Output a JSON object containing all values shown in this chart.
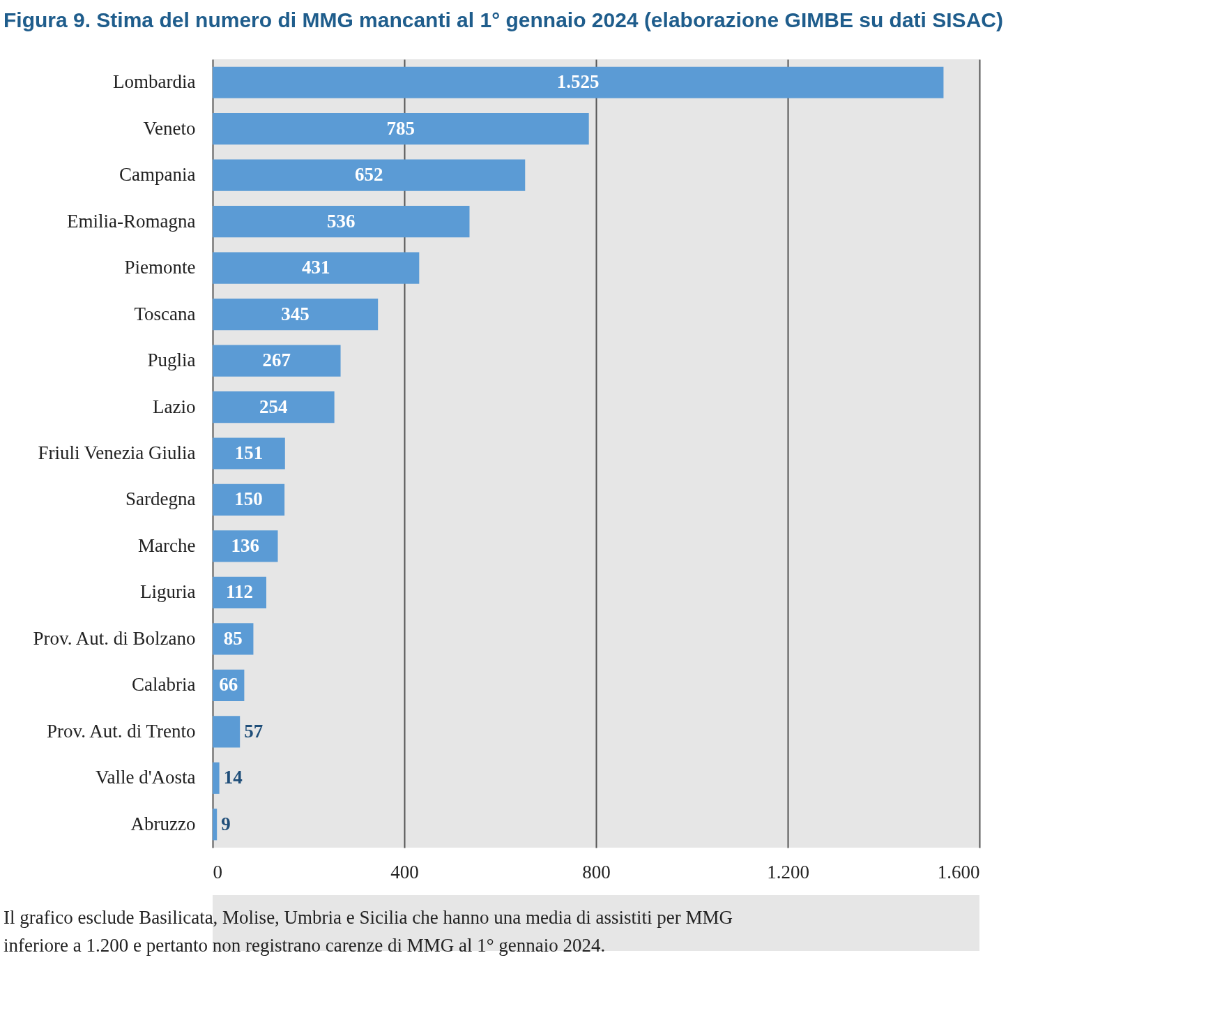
{
  "chart_data": {
    "type": "bar",
    "orientation": "horizontal",
    "title": "Figura 9. Stima del numero di MMG mancanti al 1° gennaio 2024 (elaborazione GIMBE su dati SISAC)",
    "categories": [
      "Lombardia",
      "Veneto",
      "Campania",
      "Emilia-Romagna",
      "Piemonte",
      "Toscana",
      "Puglia",
      "Lazio",
      "Friuli Venezia Giulia",
      "Sardegna",
      "Marche",
      "Liguria",
      "Prov. Aut. di Bolzano",
      "Calabria",
      "Prov. Aut. di Trento",
      "Valle d'Aosta",
      "Abruzzo"
    ],
    "values": [
      1525,
      785,
      652,
      536,
      431,
      345,
      267,
      254,
      151,
      150,
      136,
      112,
      85,
      66,
      57,
      14,
      9
    ],
    "value_labels": [
      "1.525",
      "785",
      "652",
      "536",
      "431",
      "345",
      "267",
      "254",
      "151",
      "150",
      "136",
      "112",
      "85",
      "66",
      "57",
      "14",
      "9"
    ],
    "color": "#5b9bd5",
    "xlim": [
      0,
      1600
    ],
    "xticks": [
      0,
      400,
      800,
      {
        "value": 1200,
        "label": "1.200"
      },
      {
        "value": 1600,
        "label": "1.600"
      }
    ],
    "grid": "x",
    "annotations": [
      "Il grafico esclude Basilicata, Molise, Umbria e Sicilia che hanno una media di assistiti per MMG inferiore a 1.200 e pertanto non registrano carenze di MMG al 1° gennaio 2024."
    ]
  }
}
